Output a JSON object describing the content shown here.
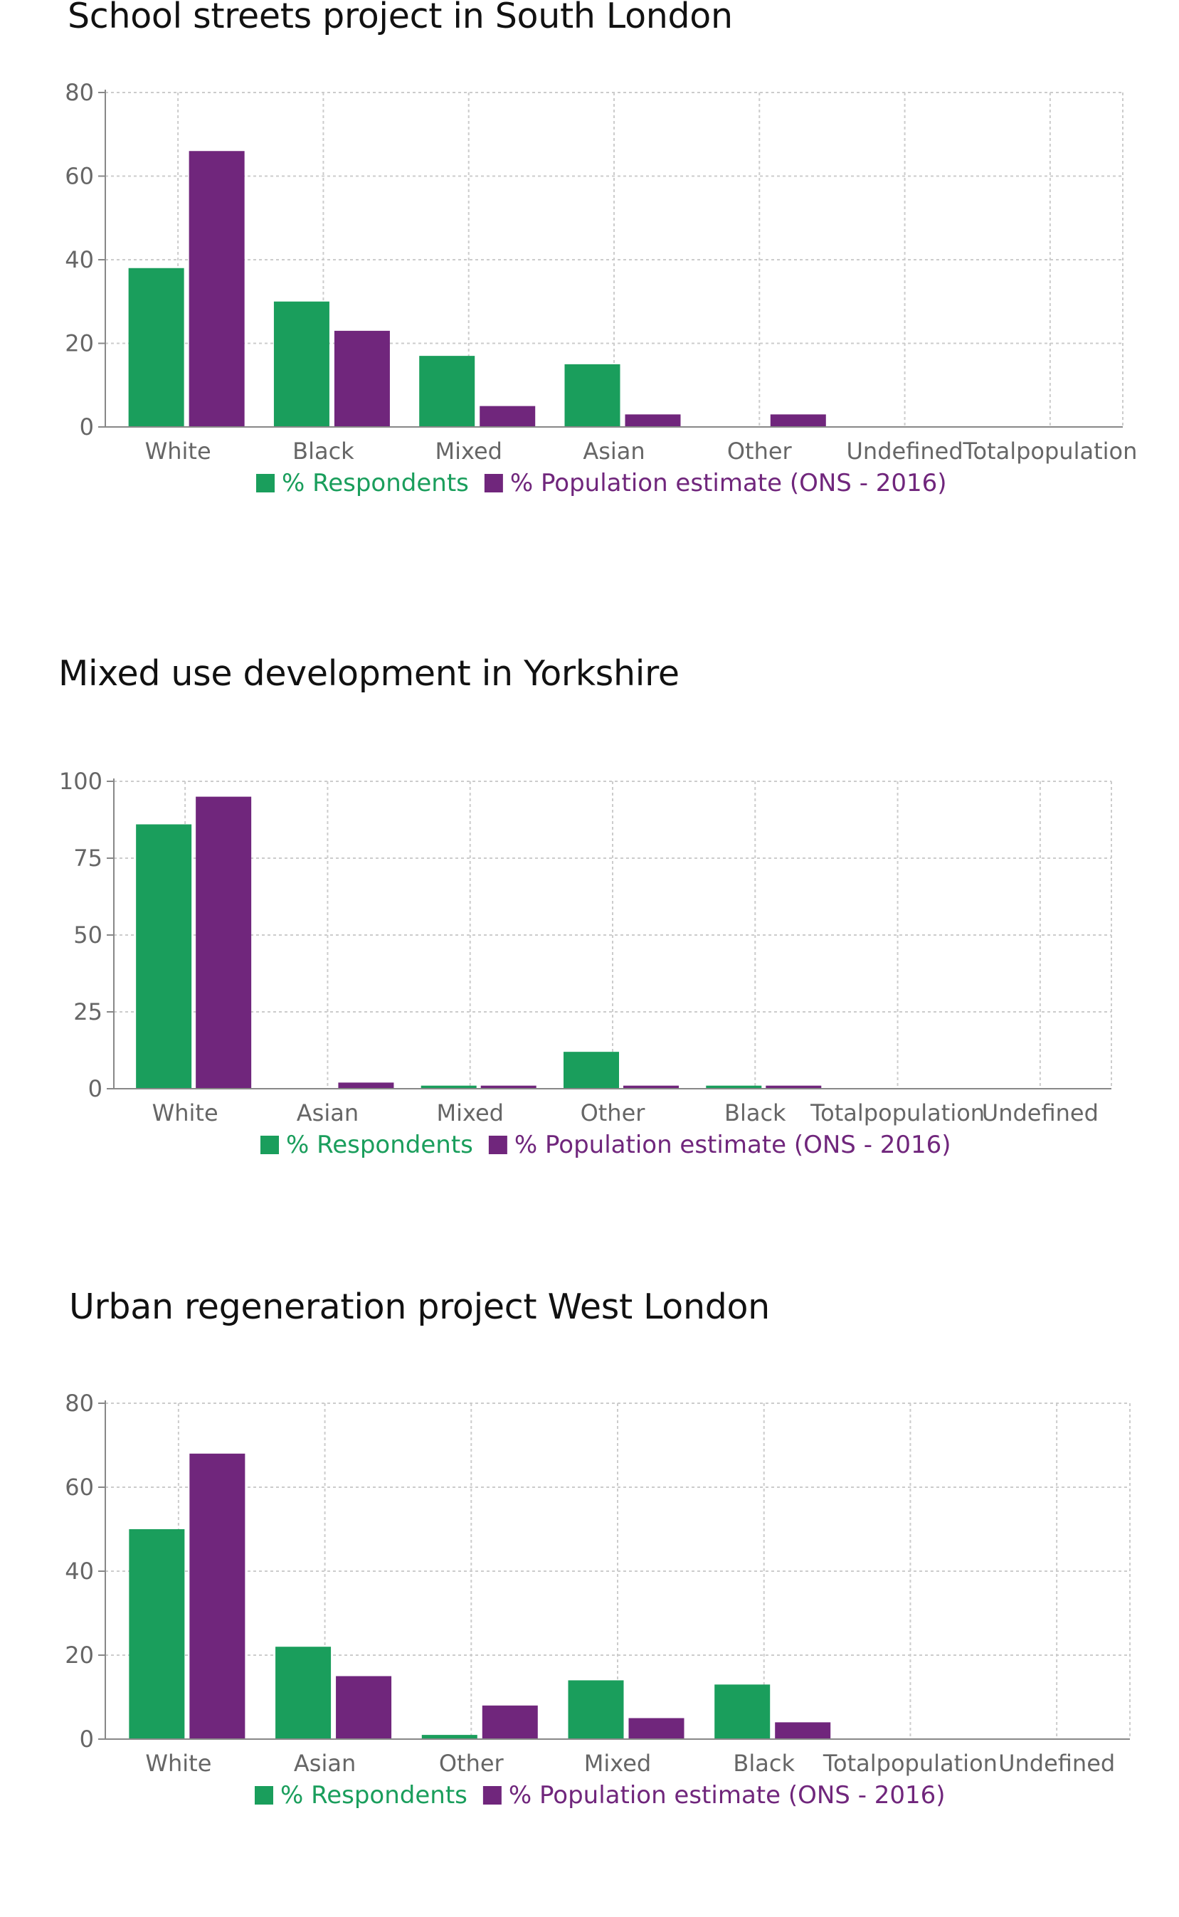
{
  "colors": {
    "respondents": "#1a9e5c",
    "population": "#70267c"
  },
  "legend": {
    "respondents": "% Respondents",
    "population": "% Population estimate (ONS - 2016)"
  },
  "chart_data": [
    {
      "type": "bar",
      "title": "School streets project in South London",
      "categories": [
        "White",
        "Black",
        "Mixed",
        "Asian",
        "Other",
        "Undefined",
        "Totalpopulation"
      ],
      "yticks": [
        "0",
        "20",
        "40",
        "60",
        "80"
      ],
      "ylim": [
        0,
        80
      ],
      "grid": true,
      "legend_position": "bottom",
      "series": [
        {
          "name": "% Respondents",
          "values": [
            38,
            30,
            17,
            15,
            0,
            0,
            0
          ]
        },
        {
          "name": "% Population estimate (ONS - 2016)",
          "values": [
            66,
            23,
            5,
            3,
            3,
            0,
            0
          ]
        }
      ]
    },
    {
      "type": "bar",
      "title": "Mixed use development in Yorkshire",
      "categories": [
        "White",
        "Asian",
        "Mixed",
        "Other",
        "Black",
        "Totalpopulation",
        "Undefined"
      ],
      "yticks": [
        "0",
        "25",
        "50",
        "75",
        "100"
      ],
      "ylim": [
        0,
        100
      ],
      "grid": true,
      "legend_position": "bottom",
      "series": [
        {
          "name": "% Respondents",
          "values": [
            86,
            0,
            1,
            12,
            1,
            0,
            0
          ]
        },
        {
          "name": "% Population estimate (ONS - 2016)",
          "values": [
            95,
            2,
            1,
            1,
            1,
            0,
            0
          ]
        }
      ]
    },
    {
      "type": "bar",
      "title": "Urban regeneration project West London",
      "categories": [
        "White",
        "Asian",
        "Other",
        "Mixed",
        "Black",
        "Totalpopulation",
        "Undefined"
      ],
      "yticks": [
        "0",
        "20",
        "40",
        "60",
        "80"
      ],
      "ylim": [
        0,
        80
      ],
      "grid": true,
      "legend_position": "bottom",
      "series": [
        {
          "name": "% Respondents",
          "values": [
            50,
            22,
            1,
            14,
            13,
            0,
            0
          ]
        },
        {
          "name": "% Population estimate (ONS - 2016)",
          "values": [
            68,
            15,
            8,
            5,
            4,
            0,
            0
          ]
        }
      ]
    }
  ]
}
